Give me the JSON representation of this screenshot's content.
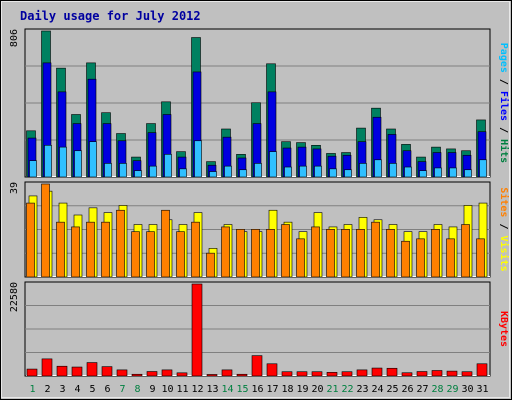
{
  "chart_data": {
    "type": "bar",
    "title": "Daily usage for July 2012",
    "categories": [
      "1",
      "2",
      "3",
      "4",
      "5",
      "6",
      "7",
      "8",
      "9",
      "10",
      "11",
      "12",
      "13",
      "14",
      "15",
      "16",
      "17",
      "18",
      "19",
      "20",
      "21",
      "22",
      "23",
      "24",
      "25",
      "26",
      "27",
      "28",
      "29",
      "30",
      "31"
    ],
    "weekend_days": [
      1,
      7,
      8,
      14,
      15,
      21,
      22,
      28,
      29
    ],
    "grid": true,
    "panels": [
      {
        "id": "hits",
        "max_label": "806",
        "ylim": [
          0,
          806
        ],
        "axis_label_parts": [
          {
            "text": "Pages",
            "color": "#00c0ff"
          },
          {
            "text": " / ",
            "color": "#000000"
          },
          {
            "text": "Files",
            "color": "#0000ff"
          },
          {
            "text": " / ",
            "color": "#000000"
          },
          {
            "text": "Hits",
            "color": "#008040"
          }
        ],
        "series": [
          {
            "name": "Hits",
            "color": "#008060",
            "values": [
              255,
              806,
              601,
              345,
              630,
              355,
              240,
              110,
              295,
              415,
              140,
              770,
              85,
              265,
              125,
              410,
              625,
              195,
              190,
              175,
              130,
              135,
              270,
              380,
              265,
              180,
              110,
              165,
              155,
              145,
              315
            ]
          },
          {
            "name": "Files",
            "color": "#0000e0",
            "values": [
              215,
              630,
              470,
              295,
              540,
              295,
              200,
              90,
              245,
              345,
              110,
              580,
              65,
              220,
              105,
              295,
              470,
              160,
              165,
              155,
              115,
              120,
              195,
              330,
              235,
              145,
              85,
              135,
              135,
              120,
              250
            ]
          },
          {
            "name": "Pages",
            "color": "#30c0ff",
            "values": [
              90,
              175,
              165,
              145,
              195,
              75,
              75,
              35,
              60,
              125,
              45,
              200,
              30,
              60,
              40,
              75,
              140,
              55,
              60,
              60,
              45,
              40,
              75,
              95,
              75,
              55,
              35,
              50,
              50,
              40,
              95
            ]
          }
        ]
      },
      {
        "id": "visits",
        "max_label": "39",
        "ylim": [
          0,
          39
        ],
        "axis_label_parts": [
          {
            "text": "Sites",
            "color": "#ff8000"
          },
          {
            "text": " / ",
            "color": "#000000"
          },
          {
            "text": "Visits",
            "color": "#ffff00"
          }
        ],
        "series": [
          {
            "name": "Visits",
            "color": "#ffff00",
            "values": [
              34,
              36,
              31,
              26,
              29,
              27,
              30,
              22,
              22,
              24,
              22,
              27,
              12,
              22,
              19,
              19,
              28,
              23,
              19,
              27,
              21,
              22,
              25,
              24,
              22,
              19,
              19,
              22,
              21,
              30,
              31
            ]
          },
          {
            "name": "Sites",
            "color": "#ff8000",
            "values": [
              31,
              39,
              23,
              21,
              23,
              23,
              28,
              19,
              19,
              28,
              19,
              23,
              10,
              21,
              20,
              20,
              20,
              22,
              16,
              21,
              20,
              20,
              20,
              23,
              20,
              15,
              16,
              20,
              16,
              22,
              16
            ]
          }
        ]
      },
      {
        "id": "kbytes",
        "max_label": "22580",
        "ylim": [
          0,
          22580
        ],
        "axis_label_parts": [
          {
            "text": "KBytes",
            "color": "#ff0000"
          }
        ],
        "series": [
          {
            "name": "KBytes",
            "color": "#ff0000",
            "values": [
              1700,
              4200,
              2400,
              2200,
              3300,
              2300,
              1500,
              430,
              1100,
              1500,
              780,
              22580,
              380,
              1500,
              430,
              5000,
              3000,
              1050,
              1050,
              1050,
              900,
              1050,
              1500,
              1950,
              1900,
              800,
              1100,
              1350,
              1200,
              1050,
              3000
            ]
          }
        ]
      }
    ]
  }
}
